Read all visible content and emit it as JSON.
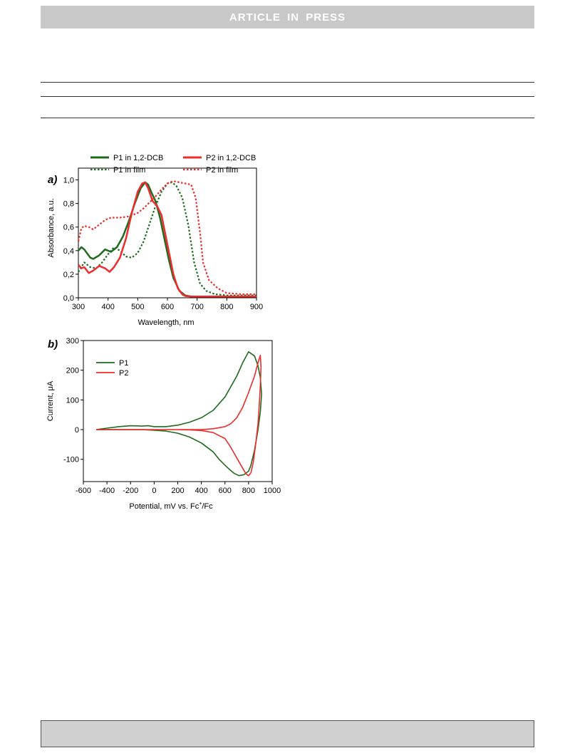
{
  "header": {
    "banner": "ARTICLE  IN  PRESS"
  },
  "colors": {
    "green": "#1e6b1e",
    "red": "#ee2c2c",
    "banner_bg": "#c8c8c8",
    "footer_bg": "#d0d0d0"
  },
  "chart_data": [
    {
      "panel_label": "a)",
      "type": "line",
      "xlabel": "Wavelength, nm",
      "ylabel": "Absorbance, a.u.",
      "xlim": [
        300,
        900
      ],
      "ylim": [
        0,
        1.1
      ],
      "xticks": [
        "300",
        "400",
        "500",
        "600",
        "700",
        "800",
        "900"
      ],
      "yticks": [
        "0,0",
        "0,2",
        "0,4",
        "0,6",
        "0,8",
        "1,0"
      ],
      "legend_position": "top",
      "series": [
        {
          "name": "P1 in 1,2-DCB",
          "color": "#1e6b1e",
          "style": "solid",
          "x": [
            300,
            310,
            320,
            340,
            350,
            370,
            390,
            410,
            430,
            450,
            470,
            490,
            510,
            525,
            535,
            545,
            560,
            575,
            590,
            605,
            620,
            640,
            660,
            680,
            700,
            750,
            800,
            850,
            900
          ],
          "y": [
            0.4,
            0.43,
            0.41,
            0.34,
            0.33,
            0.36,
            0.41,
            0.39,
            0.43,
            0.52,
            0.65,
            0.8,
            0.93,
            0.98,
            0.96,
            0.9,
            0.82,
            0.68,
            0.5,
            0.32,
            0.17,
            0.06,
            0.02,
            0.01,
            0.01,
            0.01,
            0.01,
            0.01,
            0.01
          ]
        },
        {
          "name": "P1 in film",
          "color": "#1e6b1e",
          "style": "dotted",
          "x": [
            300,
            320,
            340,
            360,
            380,
            400,
            420,
            440,
            460,
            480,
            500,
            520,
            540,
            560,
            580,
            600,
            615,
            630,
            650,
            670,
            690,
            710,
            730,
            760,
            800,
            850,
            900
          ],
          "y": [
            0.22,
            0.3,
            0.26,
            0.25,
            0.3,
            0.37,
            0.43,
            0.4,
            0.35,
            0.34,
            0.38,
            0.48,
            0.63,
            0.78,
            0.9,
            0.97,
            0.98,
            0.95,
            0.85,
            0.62,
            0.3,
            0.12,
            0.06,
            0.03,
            0.02,
            0.02,
            0.02
          ]
        },
        {
          "name": "P2 in 1,2-DCB",
          "color": "#ee2c2c",
          "style": "solid",
          "x": [
            300,
            310,
            320,
            335,
            350,
            370,
            390,
            405,
            420,
            440,
            460,
            480,
            500,
            515,
            525,
            535,
            550,
            565,
            580,
            600,
            620,
            635,
            650,
            660,
            680,
            700,
            750,
            800,
            850,
            900
          ],
          "y": [
            0.28,
            0.25,
            0.26,
            0.21,
            0.23,
            0.27,
            0.25,
            0.22,
            0.26,
            0.34,
            0.5,
            0.72,
            0.9,
            0.97,
            0.98,
            0.93,
            0.82,
            0.78,
            0.7,
            0.45,
            0.2,
            0.08,
            0.03,
            0.015,
            0.01,
            0.01,
            0.01,
            0.01,
            0.01,
            0.01
          ]
        },
        {
          "name": "P2 in film",
          "color": "#ee2c2c",
          "style": "dotted",
          "x": [
            300,
            310,
            320,
            335,
            350,
            370,
            390,
            410,
            440,
            470,
            500,
            520,
            540,
            560,
            580,
            600,
            620,
            640,
            660,
            680,
            695,
            710,
            720,
            740,
            770,
            800,
            850,
            900
          ],
          "y": [
            0.48,
            0.59,
            0.61,
            0.6,
            0.58,
            0.62,
            0.66,
            0.68,
            0.68,
            0.69,
            0.72,
            0.76,
            0.81,
            0.86,
            0.92,
            0.97,
            0.99,
            0.98,
            0.97,
            0.96,
            0.85,
            0.55,
            0.3,
            0.15,
            0.08,
            0.04,
            0.03,
            0.03
          ]
        }
      ]
    },
    {
      "panel_label": "b)",
      "type": "line",
      "xlabel_main": "Potential, mV vs. Fc",
      "xlabel_sup": "+",
      "xlabel_tail": "/Fc",
      "ylabel": "Current, μA",
      "xlim": [
        -600,
        1000
      ],
      "ylim": [
        -175,
        300
      ],
      "xticks": [
        "-600",
        "-400",
        "-200",
        "0",
        "200",
        "400",
        "600",
        "800",
        "1000"
      ],
      "yticks": [
        "300",
        "200",
        "100",
        "0",
        "-100"
      ],
      "legend_position": "top-left",
      "series": [
        {
          "name": "P1",
          "color": "#1e6b1e",
          "x": [
            -490,
            -400,
            -300,
            -200,
            -100,
            -50,
            0,
            100,
            200,
            300,
            400,
            500,
            600,
            700,
            750,
            800,
            850,
            880,
            900,
            910,
            900,
            880,
            850,
            820,
            800,
            760,
            720,
            680,
            640,
            600,
            550,
            500,
            400,
            300,
            200,
            100,
            0,
            -100,
            -200,
            -300,
            -400,
            -490
          ],
          "y": [
            0,
            5,
            10,
            13,
            12,
            13,
            10,
            10,
            15,
            25,
            40,
            65,
            110,
            180,
            225,
            262,
            248,
            215,
            175,
            120,
            60,
            0,
            -70,
            -120,
            -140,
            -152,
            -155,
            -148,
            -135,
            -120,
            -100,
            -75,
            -45,
            -25,
            -12,
            -5,
            -2,
            0,
            0,
            0,
            0,
            0
          ]
        },
        {
          "name": "P2",
          "color": "#ee2c2c",
          "x": [
            -490,
            -300,
            -100,
            0,
            100,
            200,
            300,
            400,
            500,
            600,
            650,
            700,
            750,
            800,
            850,
            880,
            900,
            905,
            900,
            890,
            880,
            860,
            840,
            820,
            800,
            780,
            750,
            700,
            650,
            600,
            500,
            400,
            300,
            200,
            100,
            0,
            -100,
            -300,
            -490
          ],
          "y": [
            0,
            0,
            0,
            0,
            0,
            0,
            0,
            0,
            3,
            10,
            20,
            40,
            75,
            125,
            180,
            225,
            250,
            210,
            150,
            80,
            20,
            -50,
            -110,
            -145,
            -155,
            -150,
            -130,
            -95,
            -60,
            -30,
            -10,
            -3,
            -1,
            0,
            0,
            0,
            0,
            0,
            0
          ]
        }
      ]
    }
  ]
}
